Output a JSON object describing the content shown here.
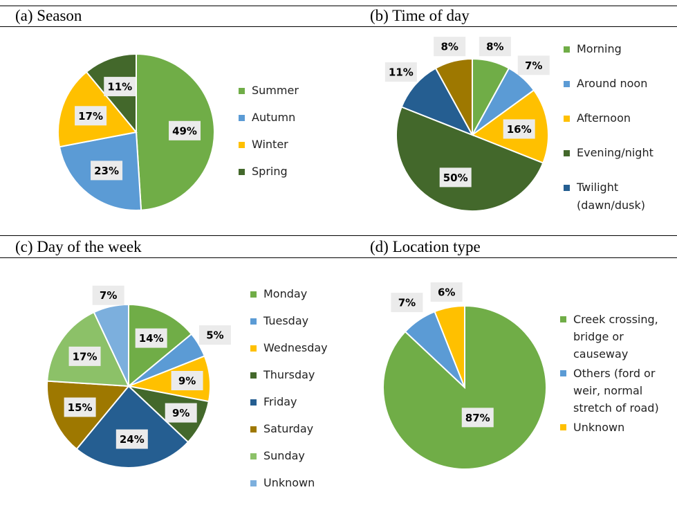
{
  "chart_data": [
    {
      "type": "pie",
      "title": "(a) Season",
      "categories": [
        "Summer",
        "Autumn",
        "Winter",
        "Spring"
      ],
      "values": [
        49,
        23,
        17,
        11
      ],
      "value_labels": [
        "49%",
        "23%",
        "17%",
        "11%"
      ],
      "colors": [
        "#70ad47",
        "#5b9bd5",
        "#ffc000",
        "#43682b"
      ]
    },
    {
      "type": "pie",
      "title": "(b) Time of day",
      "categories": [
        "Morning",
        "Around noon",
        "Afternoon",
        "Evening/night",
        "Twilight (dawn/dusk)",
        null
      ],
      "values": [
        8,
        7,
        16,
        50,
        11,
        8
      ],
      "value_labels": [
        "8%",
        "7%",
        "16%",
        "50%",
        "11%",
        "8%"
      ],
      "colors": [
        "#70ad47",
        "#5b9bd5",
        "#ffc000",
        "#43682b",
        "#255e91",
        "#9e7800"
      ]
    },
    {
      "type": "pie",
      "title": "(c) Day of the week",
      "categories": [
        "Monday",
        "Tuesday",
        "Wednesday",
        "Thursday",
        "Friday",
        "Saturday",
        "Sunday",
        "Unknown"
      ],
      "values": [
        14,
        5,
        9,
        9,
        24,
        15,
        17,
        7
      ],
      "value_labels": [
        "14%",
        "5%",
        "9%",
        "9%",
        "24%",
        "15%",
        "17%",
        "7%"
      ],
      "colors": [
        "#70ad47",
        "#5b9bd5",
        "#ffc000",
        "#43682b",
        "#255e91",
        "#9e7800",
        "#8cc168",
        "#7cafdd"
      ]
    },
    {
      "type": "pie",
      "title": "(d) Location type",
      "categories": [
        "Creek crossing, bridge or causeway",
        "Others (ford or weir, normal stretch of road)",
        "Unknown"
      ],
      "values": [
        87,
        7,
        6
      ],
      "value_labels": [
        "87%",
        "7%",
        "6%"
      ],
      "colors": [
        "#70ad47",
        "#5b9bd5",
        "#ffc000"
      ]
    }
  ]
}
